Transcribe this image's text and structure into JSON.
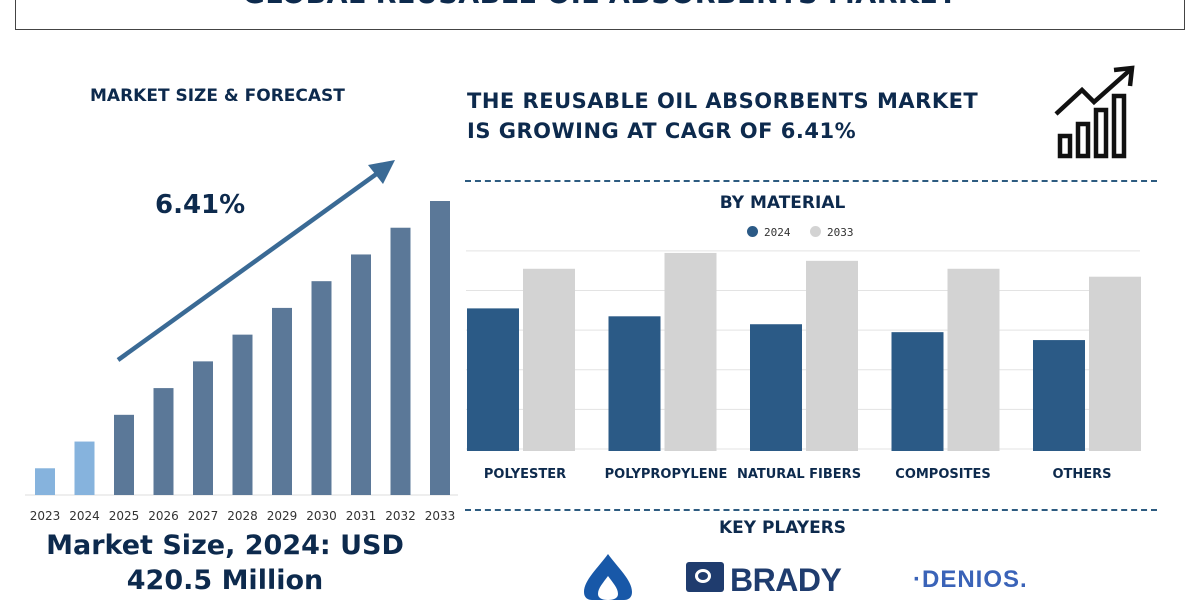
{
  "header": {
    "title": "GLOBAL REUSABLE OIL ABSORBENTS MARKET"
  },
  "left_panel": {
    "subtitle": "MARKET SIZE & FORECAST",
    "cagr": "6.41%",
    "market_size_line1": "Market Size, 2024: USD",
    "market_size_line2": "420.5 Million"
  },
  "right_panel": {
    "headline_line1": "THE REUSABLE OIL ABSORBENTS MARKET",
    "headline_line2": "IS GROWING AT CAGR OF 6.41%",
    "material_title": "BY MATERIAL",
    "key_players_title": "KEY PLAYERS",
    "key_players": [
      "BRADY",
      "DENIOS"
    ]
  },
  "colors": {
    "navy": "#0d2a4d",
    "bar_2024": "#2b5a86",
    "bar_2033": "#d3d3d3",
    "forecast_bar": "#5b7898",
    "highlight_bar": "#86b3dd",
    "arrow": "#3a6a95"
  },
  "chart_data": [
    {
      "type": "bar",
      "title": "MARKET SIZE & FORECAST",
      "categories": [
        "2023",
        "2024",
        "2025",
        "2026",
        "2027",
        "2028",
        "2029",
        "2030",
        "2031",
        "2032",
        "2033"
      ],
      "values": [
        1.0,
        2.0,
        3.0,
        4.0,
        5.0,
        6.0,
        7.0,
        8.0,
        9.0,
        10.0,
        11.0
      ],
      "highlight_categories": [
        "2023",
        "2024"
      ],
      "annotation": "6.41%",
      "grid": false
    },
    {
      "type": "bar",
      "title": "BY MATERIAL",
      "categories": [
        "POLYESTER",
        "POLYPROPYLENE",
        "NATURAL FIBERS",
        "COMPOSITES",
        "OTHERS"
      ],
      "series": [
        {
          "name": "2024",
          "values": [
            36,
            34,
            32,
            30,
            28
          ]
        },
        {
          "name": "2033",
          "values": [
            46,
            50,
            48,
            46,
            44
          ]
        }
      ],
      "ylim": [
        0,
        52
      ],
      "grid": true,
      "legend": "top-center"
    }
  ]
}
